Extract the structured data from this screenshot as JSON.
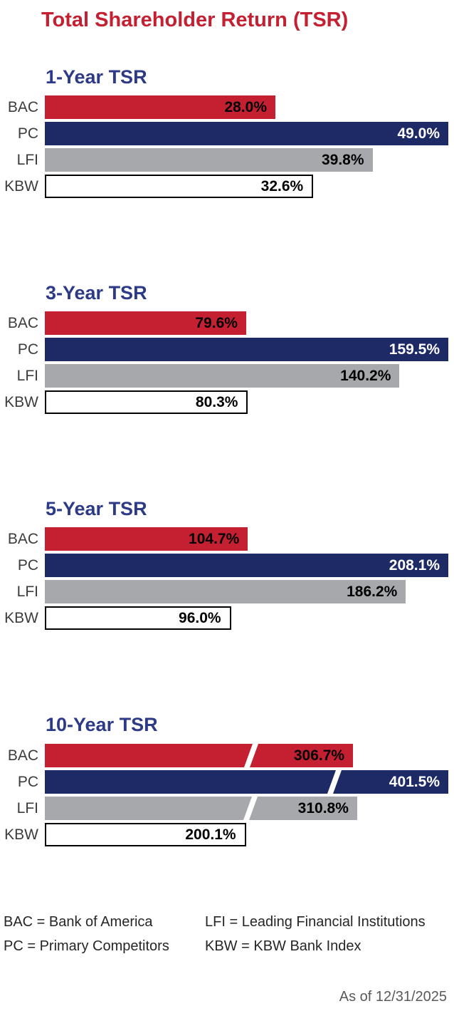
{
  "page": {
    "title": "Total Shareholder Return (TSR)",
    "as_of": "As of 12/31/2025"
  },
  "colors": {
    "title_red": "#C42032",
    "heading_blue": "#2D3A87",
    "bar_red": "#C42032",
    "bar_navy": "#1E2A66",
    "bar_gray": "#A6A8AB",
    "bar_white": "#FFFFFF",
    "break_mark": "#FFFFFF"
  },
  "series_styles": [
    {
      "name": "BAC",
      "fill": "#C42032",
      "text": "#000000"
    },
    {
      "name": "PC",
      "fill": "#1E2A66",
      "text": "#FFFFFF"
    },
    {
      "name": "LFI",
      "fill": "#A6A8AB",
      "text": "#000000"
    },
    {
      "name": "KBW",
      "fill": "#FFFFFF",
      "text": "#000000",
      "border": "2px solid #000000"
    }
  ],
  "chart_data": [
    {
      "type": "bar",
      "title": "1-Year TSR",
      "categories": [
        "BAC",
        "PC",
        "LFI",
        "KBW"
      ],
      "values": [
        28.0,
        49.0,
        39.8,
        32.6
      ],
      "value_labels": [
        "28.0%",
        "49.0%",
        "39.8%",
        "32.6%"
      ],
      "max": 49.0,
      "break_positions": [
        null,
        null,
        null,
        null
      ],
      "xlabel": "",
      "ylabel": "",
      "legend_position": "none",
      "grid": false
    },
    {
      "type": "bar",
      "title": "3-Year TSR",
      "categories": [
        "BAC",
        "PC",
        "LFI",
        "KBW"
      ],
      "values": [
        79.6,
        159.5,
        140.2,
        80.3
      ],
      "value_labels": [
        "79.6%",
        "159.5%",
        "140.2%",
        "80.3%"
      ],
      "max": 159.5,
      "break_positions": [
        null,
        null,
        null,
        null
      ],
      "xlabel": "",
      "ylabel": "",
      "legend_position": "none",
      "grid": false
    },
    {
      "type": "bar",
      "title": "5-Year TSR",
      "categories": [
        "BAC",
        "PC",
        "LFI",
        "KBW"
      ],
      "values": [
        104.7,
        208.1,
        186.2,
        96.0
      ],
      "value_labels": [
        "104.7%",
        "208.1%",
        "186.2%",
        "96.0%"
      ],
      "max": 208.1,
      "break_positions": [
        null,
        null,
        null,
        null
      ],
      "xlabel": "",
      "ylabel": "",
      "legend_position": "none",
      "grid": false
    },
    {
      "type": "bar",
      "title": "10-Year TSR",
      "categories": [
        "BAC",
        "PC",
        "LFI",
        "KBW"
      ],
      "values": [
        306.7,
        401.5,
        310.8,
        200.1
      ],
      "value_labels": [
        "306.7%",
        "401.5%",
        "310.8%",
        "200.1%"
      ],
      "max": 401.5,
      "break_positions": [
        0.66,
        0.71,
        0.65,
        null
      ],
      "xlabel": "",
      "ylabel": "",
      "legend_position": "none",
      "grid": false
    }
  ],
  "legend": {
    "items": [
      "BAC = Bank of America",
      "PC = Primary Competitors",
      "LFI = Leading Financial Institutions",
      "KBW = KBW Bank Index"
    ]
  }
}
